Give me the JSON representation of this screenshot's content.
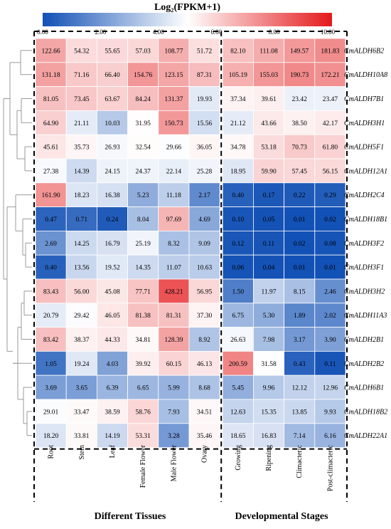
{
  "chart_data": {
    "type": "heatmap",
    "title": "Log₂(FPKM+1)",
    "colorbar": {
      "range": [
        0,
        10
      ],
      "ticks": [
        "0.00",
        "2.00",
        "4.00",
        "6.00",
        "8.00",
        "10.00"
      ],
      "colors": [
        "#1150b5",
        "#ffffff",
        "#e41a1c"
      ]
    },
    "groups": [
      {
        "label": "Different Tissues",
        "columns": [
          "Root",
          "Stem",
          "Leaf",
          "Female Flower",
          "Male Flower",
          "Ovary"
        ]
      },
      {
        "label": "Developmental Stages",
        "columns": [
          "Growing",
          "Ripening",
          "Climacteric",
          "Post-climacteric"
        ]
      }
    ],
    "columns": [
      "Root",
      "Stem",
      "Leaf",
      "Female Flower",
      "Male Flower",
      "Ovary",
      "Growing",
      "Ripening",
      "Climacteric",
      "Post-climacteric"
    ],
    "rows": [
      {
        "gene": "CmALDH6B2",
        "values": [
          "122.66",
          "54.32",
          "55.65",
          "57.03",
          "108.77",
          "51.72",
          "82.10",
          "111.08",
          "149.57",
          "181.83"
        ]
      },
      {
        "gene": "CmALDH10A8",
        "values": [
          "131.18",
          "71.16",
          "66.40",
          "154.76",
          "123.15",
          "87.31",
          "105.19",
          "155.03",
          "190.73",
          "172.21"
        ]
      },
      {
        "gene": "CmALDH7B1",
        "values": [
          "81.05",
          "73.45",
          "63.67",
          "84.24",
          "131.37",
          "19.93",
          "37.34",
          "39.61",
          "23.42",
          "23.47"
        ]
      },
      {
        "gene": "CmALDH3H1",
        "values": [
          "64.90",
          "21.11",
          "10.03",
          "31.95",
          "150.73",
          "15.56",
          "21.12",
          "43.66",
          "38.50",
          "42.17"
        ]
      },
      {
        "gene": "CmALDH5F1",
        "values": [
          "45.61",
          "35.73",
          "26.93",
          "32.54",
          "29.66",
          "36.05",
          "34.78",
          "53.18",
          "70.73",
          "61.80"
        ]
      },
      {
        "gene": "CmALDH12A1",
        "values": [
          "27.38",
          "14.39",
          "24.15",
          "24.37",
          "22.14",
          "25.28",
          "18.95",
          "59.90",
          "57.45",
          "56.15"
        ]
      },
      {
        "gene": "CmALDH2C4",
        "values": [
          "161.90",
          "18.23",
          "16.38",
          "5.23",
          "11.18",
          "2.17",
          "0.40",
          "0.17",
          "0.22",
          "0.29"
        ]
      },
      {
        "gene": "CmALDH18B1",
        "values": [
          "0.47",
          "0.71",
          "0.24",
          "8.04",
          "97.69",
          "4.69",
          "0.10",
          "0.05",
          "0.01",
          "0.02"
        ]
      },
      {
        "gene": "CmALDH3F2",
        "values": [
          "2.69",
          "14.25",
          "16.79",
          "25.19",
          "8.32",
          "9.09",
          "0.12",
          "0.11",
          "0.02",
          "0.08"
        ]
      },
      {
        "gene": "CmALDH3F1",
        "values": [
          "0.40",
          "13.56",
          "19.52",
          "14.35",
          "11.07",
          "10.63",
          "0.06",
          "0.04",
          "0.01",
          "0.01"
        ]
      },
      {
        "gene": "CmALDH3H2",
        "values": [
          "83.43",
          "56.00",
          "45.08",
          "77.71",
          "428.21",
          "56.95",
          "1.50",
          "11.97",
          "8.15",
          "2.46"
        ]
      },
      {
        "gene": "CmALDH11A3",
        "values": [
          "20.79",
          "29.42",
          "46.05",
          "81.38",
          "81.31",
          "37.30",
          "6.75",
          "5.30",
          "1.89",
          "2.02"
        ]
      },
      {
        "gene": "CmALDH2B1",
        "values": [
          "83.42",
          "38.37",
          "44.33",
          "34.81",
          "128.39",
          "8.92",
          "26.63",
          "7.98",
          "3.17",
          "3.90"
        ]
      },
      {
        "gene": "CmALDH2B2",
        "values": [
          "1.05",
          "19.24",
          "4.03",
          "39.92",
          "60.15",
          "46.13",
          "200.59",
          "31.58",
          "0.43",
          "0.11"
        ]
      },
      {
        "gene": "CmALDH6B1",
        "values": [
          "3.69",
          "3.65",
          "6.39",
          "6.65",
          "5.99",
          "8.68",
          "5.45",
          "9.96",
          "12.12",
          "12.96"
        ]
      },
      {
        "gene": "CmALDH18B2",
        "values": [
          "29.01",
          "33.47",
          "38.59",
          "58.76",
          "7.93",
          "34.51",
          "12.63",
          "15.35",
          "13.85",
          "9.93"
        ]
      },
      {
        "gene": "CmALDH22A1",
        "values": [
          "18.20",
          "33.81",
          "14.19",
          "53.31",
          "3.28",
          "35.46",
          "18.65",
          "16.83",
          "7.14",
          "6.16"
        ]
      }
    ]
  }
}
